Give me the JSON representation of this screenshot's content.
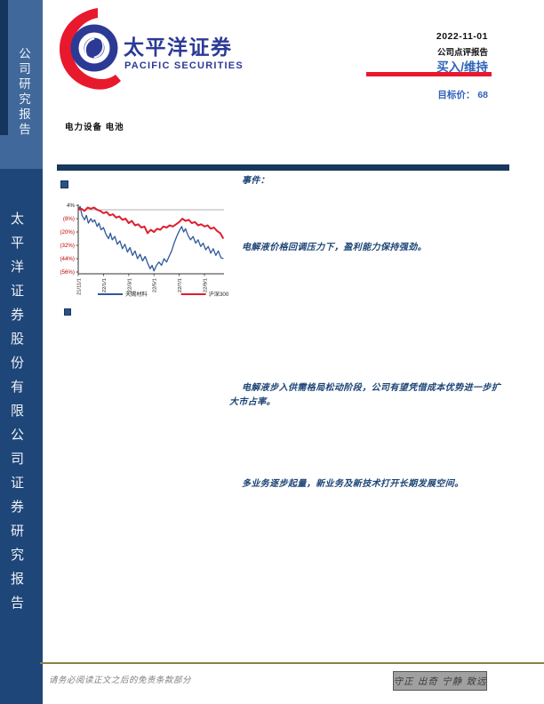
{
  "brand": {
    "name_cn": "太平洋证券",
    "name_en": "PACIFIC SECURITIES"
  },
  "sidebar": {
    "top_text": "公司研究报告",
    "bottom_text": "太平洋证券股份有限公司证券研究报告"
  },
  "header": {
    "date": "2022-11-01",
    "report_type": "公司点评报告",
    "rating": "买入/维持",
    "target_label": "目标价：",
    "target_price": "68"
  },
  "industry": "电力设备 电池",
  "sections": {
    "event_label": "事件：",
    "p1": "电解液价格回调压力下，盈利能力保持强劲。",
    "p2": "电解液步入供需格局松动阶段，公司有望凭借成本优势进一步扩大市占率。",
    "p3": "多业务逐步起量，新业务及新技术打开长期发展空间。"
  },
  "footer": {
    "disclaimer": "请务必阅读正文之后的免责条款部分",
    "motto": "守正 出奇 宁静 致远"
  },
  "chart_data": {
    "type": "line",
    "title": "",
    "xlabel": "",
    "ylabel": "",
    "ylim": [
      -56,
      4
    ],
    "grid": "zero-line-only",
    "legend_position": "bottom",
    "y_ticks": [
      {
        "v": 4,
        "label": "4%"
      },
      {
        "v": -8,
        "label": "(8%)"
      },
      {
        "v": -20,
        "label": "(20%)"
      },
      {
        "v": -32,
        "label": "(32%)"
      },
      {
        "v": -44,
        "label": "(44%)"
      },
      {
        "v": -56,
        "label": "(56%)"
      }
    ],
    "x_ticks": [
      {
        "t": 0,
        "label": "21/11/1"
      },
      {
        "t": 2,
        "label": "22/1/1"
      },
      {
        "t": 4,
        "label": "22/3/1"
      },
      {
        "t": 6,
        "label": "22/5/1"
      },
      {
        "t": 8,
        "label": "22/7/1"
      },
      {
        "t": 10,
        "label": "22/9/1"
      }
    ],
    "colors": {
      "neg_tick": "#c00000",
      "axis": "#333333",
      "zero_line": "#999999"
    },
    "series": [
      {
        "name": "天赐材料",
        "color": "#30599c",
        "width": 1.3,
        "points": [
          [
            0,
            0
          ],
          [
            0.15,
            3
          ],
          [
            0.3,
            -5
          ],
          [
            0.5,
            -9
          ],
          [
            0.65,
            -5
          ],
          [
            0.8,
            -12
          ],
          [
            1,
            -8
          ],
          [
            1.15,
            -11
          ],
          [
            1.3,
            -9
          ],
          [
            1.5,
            -15
          ],
          [
            1.65,
            -12
          ],
          [
            1.8,
            -18
          ],
          [
            2,
            -16
          ],
          [
            2.2,
            -22
          ],
          [
            2.4,
            -26
          ],
          [
            2.55,
            -21
          ],
          [
            2.7,
            -27
          ],
          [
            2.9,
            -24
          ],
          [
            3.1,
            -31
          ],
          [
            3.3,
            -28
          ],
          [
            3.5,
            -35
          ],
          [
            3.7,
            -31
          ],
          [
            3.9,
            -38
          ],
          [
            4.1,
            -34
          ],
          [
            4.3,
            -41
          ],
          [
            4.5,
            -37
          ],
          [
            4.7,
            -44
          ],
          [
            4.9,
            -40
          ],
          [
            5.1,
            -46
          ],
          [
            5.3,
            -42
          ],
          [
            5.5,
            -48
          ],
          [
            5.7,
            -53
          ],
          [
            5.85,
            -50
          ],
          [
            6,
            -55
          ],
          [
            6.2,
            -50
          ],
          [
            6.4,
            -47
          ],
          [
            6.6,
            -50
          ],
          [
            6.8,
            -44
          ],
          [
            7,
            -47
          ],
          [
            7.2,
            -42
          ],
          [
            7.4,
            -37
          ],
          [
            7.6,
            -30
          ],
          [
            7.8,
            -24
          ],
          [
            8,
            -19
          ],
          [
            8.2,
            -15
          ],
          [
            8.35,
            -20
          ],
          [
            8.5,
            -17
          ],
          [
            8.7,
            -23
          ],
          [
            8.9,
            -27
          ],
          [
            9.1,
            -24
          ],
          [
            9.3,
            -30
          ],
          [
            9.5,
            -27
          ],
          [
            9.7,
            -33
          ],
          [
            9.9,
            -30
          ],
          [
            10.1,
            -36
          ],
          [
            10.3,
            -33
          ],
          [
            10.5,
            -39
          ],
          [
            10.7,
            -35
          ],
          [
            10.9,
            -41
          ],
          [
            11.1,
            -37
          ],
          [
            11.3,
            -43
          ],
          [
            11.5,
            -44
          ]
        ]
      },
      {
        "name": "沪深300",
        "color": "#df1e2e",
        "width": 2,
        "points": [
          [
            0,
            0
          ],
          [
            0.25,
            1
          ],
          [
            0.5,
            -1
          ],
          [
            0.75,
            2
          ],
          [
            1,
            1
          ],
          [
            1.25,
            2
          ],
          [
            1.5,
            0
          ],
          [
            1.75,
            -1
          ],
          [
            2,
            -3
          ],
          [
            2.25,
            -2
          ],
          [
            2.5,
            -5
          ],
          [
            2.75,
            -4
          ],
          [
            3,
            -7
          ],
          [
            3.25,
            -6
          ],
          [
            3.5,
            -9
          ],
          [
            3.75,
            -8
          ],
          [
            4,
            -12
          ],
          [
            4.25,
            -10
          ],
          [
            4.5,
            -14
          ],
          [
            4.75,
            -13
          ],
          [
            5,
            -16
          ],
          [
            5.25,
            -15
          ],
          [
            5.5,
            -21
          ],
          [
            5.75,
            -18
          ],
          [
            6,
            -20
          ],
          [
            6.25,
            -17
          ],
          [
            6.5,
            -18
          ],
          [
            6.75,
            -15
          ],
          [
            7,
            -16
          ],
          [
            7.25,
            -14
          ],
          [
            7.5,
            -15
          ],
          [
            7.75,
            -13
          ],
          [
            8,
            -11
          ],
          [
            8.25,
            -8
          ],
          [
            8.5,
            -10
          ],
          [
            8.75,
            -9
          ],
          [
            9,
            -12
          ],
          [
            9.25,
            -11
          ],
          [
            9.5,
            -14
          ],
          [
            9.75,
            -13
          ],
          [
            10,
            -15
          ],
          [
            10.25,
            -14
          ],
          [
            10.5,
            -17
          ],
          [
            10.75,
            -16
          ],
          [
            11,
            -19
          ],
          [
            11.25,
            -21
          ],
          [
            11.5,
            -26
          ]
        ]
      }
    ]
  }
}
